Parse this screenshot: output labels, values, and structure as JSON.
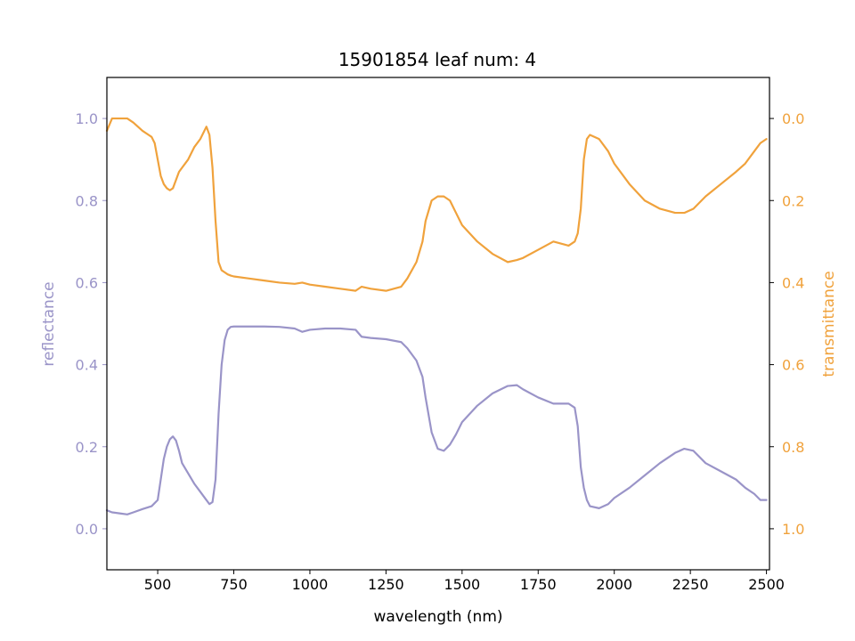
{
  "chart_data": {
    "type": "line",
    "title": "15901854 leaf num: 4",
    "xlabel": "wavelength (nm)",
    "ylabel_left": "reflectance",
    "ylabel_right": "transmittance",
    "xlim": [
      333,
      2510
    ],
    "ylim_left": [
      -0.1,
      1.1
    ],
    "ylim_right": [
      1.1,
      -0.1
    ],
    "right_axis_inverted": true,
    "xticks": [
      500,
      750,
      1000,
      1250,
      1500,
      1750,
      2000,
      2250,
      2500
    ],
    "xtick_labels": [
      "500",
      "750",
      "1000",
      "1250",
      "1500",
      "1750",
      "2000",
      "2250",
      "2500"
    ],
    "yticks_left": [
      0.0,
      0.2,
      0.4,
      0.6,
      0.8,
      1.0
    ],
    "ytick_labels_left": [
      "0.0",
      "0.2",
      "0.4",
      "0.6",
      "0.8",
      "1.0"
    ],
    "yticks_right": [
      0.0,
      0.2,
      0.4,
      0.6,
      0.8,
      1.0
    ],
    "ytick_labels_right": [
      "0.0",
      "0.2",
      "0.4",
      "0.6",
      "0.8",
      "1.0"
    ],
    "grid": false,
    "colors": {
      "reflectance": "#9a94c8",
      "transmittance": "#f0a23c"
    },
    "series": [
      {
        "axis": "left",
        "color": "#9a94c8",
        "x": [
          333,
          350,
          380,
          400,
          420,
          450,
          480,
          500,
          510,
          520,
          530,
          540,
          550,
          560,
          570,
          580,
          600,
          620,
          640,
          660,
          670,
          680,
          690,
          700,
          710,
          720,
          730,
          740,
          750,
          800,
          850,
          900,
          950,
          975,
          1000,
          1050,
          1100,
          1150,
          1170,
          1200,
          1250,
          1300,
          1320,
          1350,
          1370,
          1380,
          1400,
          1420,
          1440,
          1460,
          1480,
          1500,
          1550,
          1600,
          1650,
          1680,
          1700,
          1750,
          1800,
          1850,
          1870,
          1880,
          1890,
          1900,
          1910,
          1920,
          1950,
          1980,
          2000,
          2050,
          2100,
          2150,
          2200,
          2230,
          2260,
          2300,
          2350,
          2400,
          2430,
          2460,
          2480,
          2500
        ],
        "y": [
          0.045,
          0.04,
          0.037,
          0.035,
          0.04,
          0.048,
          0.055,
          0.07,
          0.12,
          0.17,
          0.2,
          0.218,
          0.225,
          0.215,
          0.19,
          0.16,
          0.135,
          0.11,
          0.09,
          0.07,
          0.06,
          0.065,
          0.12,
          0.28,
          0.4,
          0.46,
          0.485,
          0.492,
          0.493,
          0.493,
          0.493,
          0.492,
          0.488,
          0.48,
          0.485,
          0.488,
          0.488,
          0.485,
          0.468,
          0.465,
          0.462,
          0.455,
          0.44,
          0.41,
          0.37,
          0.32,
          0.235,
          0.195,
          0.19,
          0.205,
          0.23,
          0.26,
          0.3,
          0.33,
          0.348,
          0.35,
          0.34,
          0.32,
          0.305,
          0.305,
          0.295,
          0.25,
          0.15,
          0.1,
          0.07,
          0.055,
          0.05,
          0.06,
          0.075,
          0.1,
          0.13,
          0.16,
          0.185,
          0.195,
          0.19,
          0.16,
          0.14,
          0.12,
          0.1,
          0.085,
          0.07,
          0.07
        ]
      },
      {
        "axis": "right",
        "color": "#f0a23c",
        "x": [
          333,
          350,
          380,
          400,
          420,
          450,
          470,
          480,
          490,
          500,
          510,
          520,
          530,
          540,
          550,
          560,
          570,
          580,
          600,
          620,
          640,
          660,
          670,
          680,
          690,
          700,
          710,
          720,
          730,
          740,
          750,
          800,
          850,
          900,
          950,
          975,
          1000,
          1050,
          1100,
          1150,
          1170,
          1200,
          1250,
          1300,
          1320,
          1350,
          1370,
          1380,
          1400,
          1420,
          1440,
          1460,
          1480,
          1500,
          1550,
          1600,
          1650,
          1680,
          1700,
          1750,
          1800,
          1850,
          1870,
          1880,
          1890,
          1900,
          1910,
          1920,
          1950,
          1980,
          2000,
          2050,
          2100,
          2150,
          2200,
          2230,
          2260,
          2300,
          2350,
          2400,
          2430,
          2460,
          2480,
          2500
        ],
        "y": [
          0.03,
          0.0,
          0.0,
          0.0,
          0.01,
          0.03,
          0.04,
          0.045,
          0.06,
          0.1,
          0.14,
          0.16,
          0.17,
          0.175,
          0.17,
          0.15,
          0.13,
          0.12,
          0.1,
          0.07,
          0.05,
          0.02,
          0.04,
          0.12,
          0.25,
          0.35,
          0.37,
          0.375,
          0.38,
          0.383,
          0.385,
          0.39,
          0.395,
          0.4,
          0.403,
          0.4,
          0.405,
          0.41,
          0.415,
          0.42,
          0.41,
          0.415,
          0.42,
          0.41,
          0.39,
          0.35,
          0.3,
          0.25,
          0.2,
          0.19,
          0.19,
          0.2,
          0.23,
          0.26,
          0.3,
          0.33,
          0.35,
          0.345,
          0.34,
          0.32,
          0.3,
          0.31,
          0.3,
          0.28,
          0.22,
          0.1,
          0.05,
          0.04,
          0.05,
          0.08,
          0.11,
          0.16,
          0.2,
          0.22,
          0.23,
          0.23,
          0.22,
          0.19,
          0.16,
          0.13,
          0.11,
          0.08,
          0.06,
          0.05
        ]
      }
    ]
  }
}
